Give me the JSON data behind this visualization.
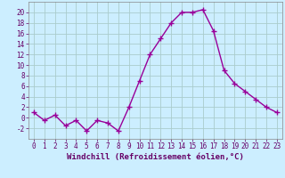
{
  "x": [
    0,
    1,
    2,
    3,
    4,
    5,
    6,
    7,
    8,
    9,
    10,
    11,
    12,
    13,
    14,
    15,
    16,
    17,
    18,
    19,
    20,
    21,
    22,
    23
  ],
  "y": [
    1,
    -0.5,
    0.5,
    -1.5,
    -0.5,
    -2.5,
    -0.5,
    -1,
    -2.5,
    2,
    7,
    12,
    15,
    18,
    20,
    20,
    20.5,
    16.5,
    9,
    6.5,
    5,
    3.5,
    2,
    1
  ],
  "line_color": "#990099",
  "marker": "+",
  "markersize": 4,
  "linewidth": 1.0,
  "background_color": "#cceeff",
  "grid_color": "#aacccc",
  "title": "",
  "xlabel": "Windchill (Refroidissement éolien,°C)",
  "ylabel": "",
  "xlim": [
    -0.5,
    23.5
  ],
  "ylim": [
    -4,
    22
  ],
  "yticks": [
    -2,
    0,
    2,
    4,
    6,
    8,
    10,
    12,
    14,
    16,
    18,
    20
  ],
  "xticks": [
    0,
    1,
    2,
    3,
    4,
    5,
    6,
    7,
    8,
    9,
    10,
    11,
    12,
    13,
    14,
    15,
    16,
    17,
    18,
    19,
    20,
    21,
    22,
    23
  ],
  "tick_fontsize": 5.5,
  "xlabel_fontsize": 6.5,
  "tick_color": "#660066",
  "label_color": "#660066",
  "spine_color": "#888888"
}
